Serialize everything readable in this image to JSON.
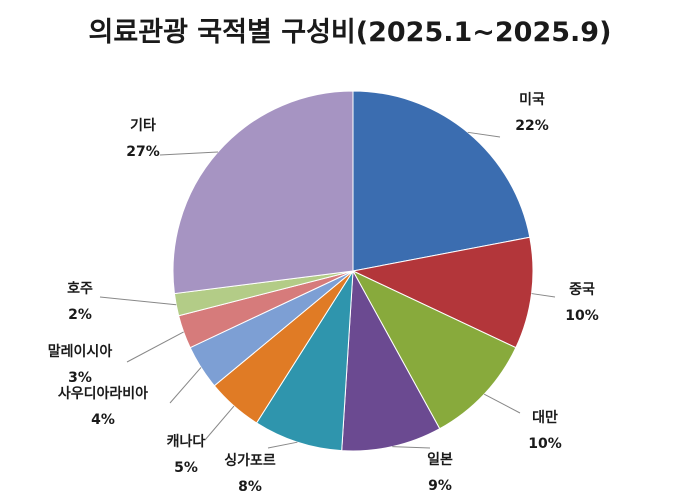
{
  "chart_data": {
    "type": "pie",
    "title": "의료관광 국적별 구성비(2025.1~2025.9)",
    "slices": [
      {
        "label": "미국",
        "value": 22,
        "pct": "22%",
        "color": "#3b6db0"
      },
      {
        "label": "중국",
        "value": 10,
        "pct": "10%",
        "color": "#b3363a"
      },
      {
        "label": "대만",
        "value": 10,
        "pct": "10%",
        "color": "#88aa3c"
      },
      {
        "label": "일본",
        "value": 9,
        "pct": "9%",
        "color": "#6b4a91"
      },
      {
        "label": "싱가포르",
        "value": 8,
        "pct": "8%",
        "color": "#2f95ad"
      },
      {
        "label": "캐나다",
        "value": 5,
        "pct": "5%",
        "color": "#e07b25"
      },
      {
        "label": "사우디아라비아",
        "value": 4,
        "pct": "4%",
        "color": "#7d9fd4"
      },
      {
        "label": "말레이시아",
        "value": 3,
        "pct": "3%",
        "color": "#d67b7b"
      },
      {
        "label": "호주",
        "value": 2,
        "pct": "2%",
        "color": "#b3cc87"
      },
      {
        "label": "기타",
        "value": 27,
        "pct": "27%",
        "color": "#a694c2"
      }
    ]
  }
}
